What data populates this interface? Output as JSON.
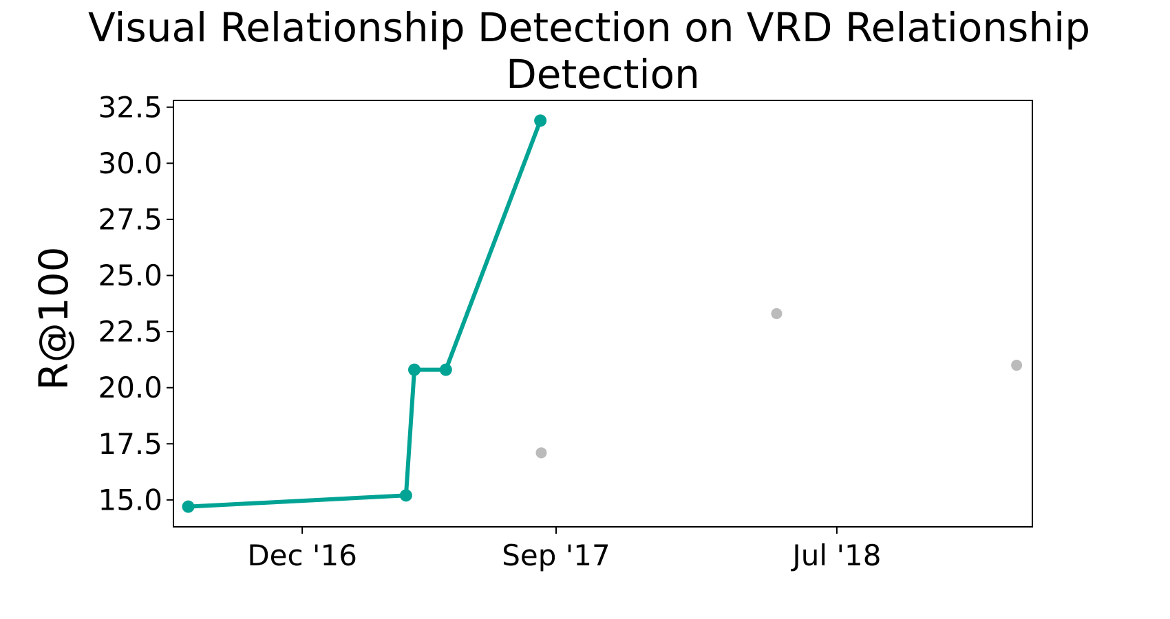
{
  "chart_data": {
    "type": "line",
    "title_line1": "Visual Relationship Detection on VRD Relationship",
    "title_line2": "Detection",
    "xlabel": "",
    "ylabel": "R@100",
    "x_ticks": [
      "Dec '16",
      "Sep '17",
      "Jul '18"
    ],
    "x_tick_dates": [
      "2016-12-01",
      "2017-09-01",
      "2018-07-01"
    ],
    "y_ticks": [
      "15.0",
      "17.5",
      "20.0",
      "22.5",
      "25.0",
      "27.5",
      "30.0",
      "32.5"
    ],
    "ylim": [
      13.8,
      32.8
    ],
    "xlim": [
      "2016-07-15",
      "2019-01-28"
    ],
    "grid": false,
    "series": [
      {
        "role": "state-of-the-art",
        "color": "#00a394",
        "points": [
          {
            "x": "2016-07-31",
            "y": 14.7
          },
          {
            "x": "2017-03-23",
            "y": 15.2
          },
          {
            "x": "2017-04-01",
            "y": 20.8
          },
          {
            "x": "2017-05-05",
            "y": 20.8
          },
          {
            "x": "2017-08-15",
            "y": 31.9
          }
        ]
      },
      {
        "role": "other",
        "color": "#bbbbbb",
        "points": [
          {
            "x": "2017-08-16",
            "y": 17.1
          },
          {
            "x": "2018-04-27",
            "y": 23.3
          },
          {
            "x": "2019-01-11",
            "y": 21.0
          }
        ]
      }
    ]
  }
}
